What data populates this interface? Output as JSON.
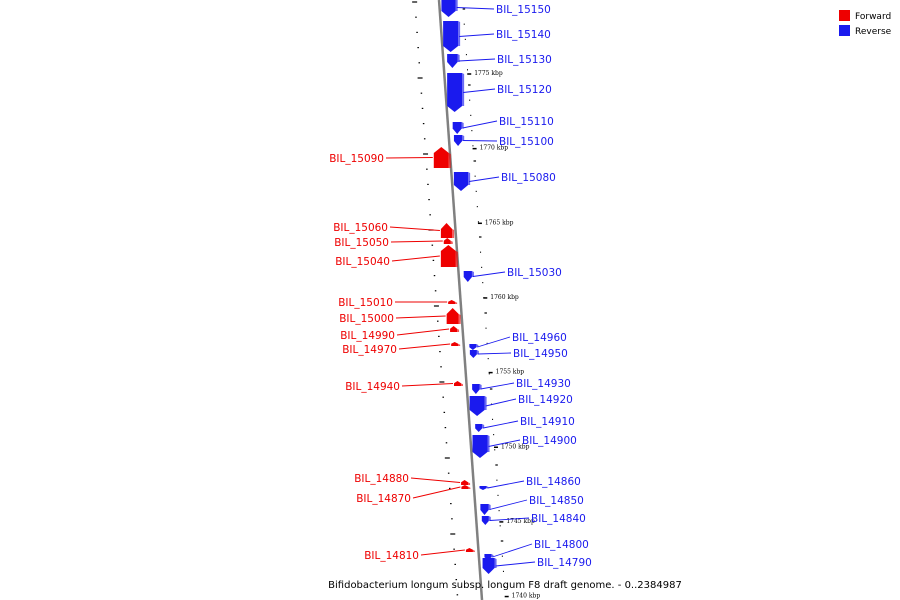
{
  "colors": {
    "forward": "#ee0000",
    "reverse": "#1a1aee",
    "axis": "#808080",
    "tick": "#000000"
  },
  "legend": [
    {
      "label": "Forward",
      "strand": "forward"
    },
    {
      "label": "Reverse",
      "strand": "reverse"
    }
  ],
  "caption": "Bifidobacterium longum subsp. longum F8 draft genome. - 0..2384987",
  "kbp_markers": [
    {
      "label": "1775 kbp",
      "kbp": 1775
    },
    {
      "label": "1770 kbp",
      "kbp": 1770
    },
    {
      "label": "1765 kbp",
      "kbp": 1765
    },
    {
      "label": "1760 kbp",
      "kbp": 1760
    },
    {
      "label": "1755 kbp",
      "kbp": 1755
    },
    {
      "label": "1750 kbp",
      "kbp": 1750
    },
    {
      "label": "1745 kbp",
      "kbp": 1745
    },
    {
      "label": "1740 kbp",
      "kbp": 1740
    }
  ],
  "genes": [
    {
      "name": "BIL_15150",
      "strand": "reverse"
    },
    {
      "name": "BIL_15140",
      "strand": "reverse"
    },
    {
      "name": "BIL_15130",
      "strand": "reverse"
    },
    {
      "name": "BIL_15120",
      "strand": "reverse"
    },
    {
      "name": "BIL_15110",
      "strand": "reverse"
    },
    {
      "name": "BIL_15100",
      "strand": "reverse"
    },
    {
      "name": "BIL_15090",
      "strand": "forward"
    },
    {
      "name": "BIL_15080",
      "strand": "reverse"
    },
    {
      "name": "BIL_15060",
      "strand": "forward"
    },
    {
      "name": "BIL_15050",
      "strand": "forward"
    },
    {
      "name": "BIL_15040",
      "strand": "forward"
    },
    {
      "name": "BIL_15030",
      "strand": "reverse"
    },
    {
      "name": "BIL_15010",
      "strand": "forward"
    },
    {
      "name": "BIL_15000",
      "strand": "forward"
    },
    {
      "name": "BIL_14990",
      "strand": "forward"
    },
    {
      "name": "BIL_14970",
      "strand": "forward"
    },
    {
      "name": "BIL_14960",
      "strand": "reverse"
    },
    {
      "name": "BIL_14950",
      "strand": "reverse"
    },
    {
      "name": "BIL_14940",
      "strand": "forward"
    },
    {
      "name": "BIL_14930",
      "strand": "reverse"
    },
    {
      "name": "BIL_14920",
      "strand": "reverse"
    },
    {
      "name": "BIL_14910",
      "strand": "reverse"
    },
    {
      "name": "BIL_14900",
      "strand": "reverse"
    },
    {
      "name": "BIL_14880",
      "strand": "forward"
    },
    {
      "name": "BIL_14870",
      "strand": "forward"
    },
    {
      "name": "BIL_14860",
      "strand": "reverse"
    },
    {
      "name": "BIL_14850",
      "strand": "reverse"
    },
    {
      "name": "BIL_14840",
      "strand": "reverse"
    },
    {
      "name": "BIL_14810",
      "strand": "forward"
    },
    {
      "name": "BIL_14800",
      "strand": "reverse"
    },
    {
      "name": "BIL_14790",
      "strand": "reverse"
    }
  ]
}
